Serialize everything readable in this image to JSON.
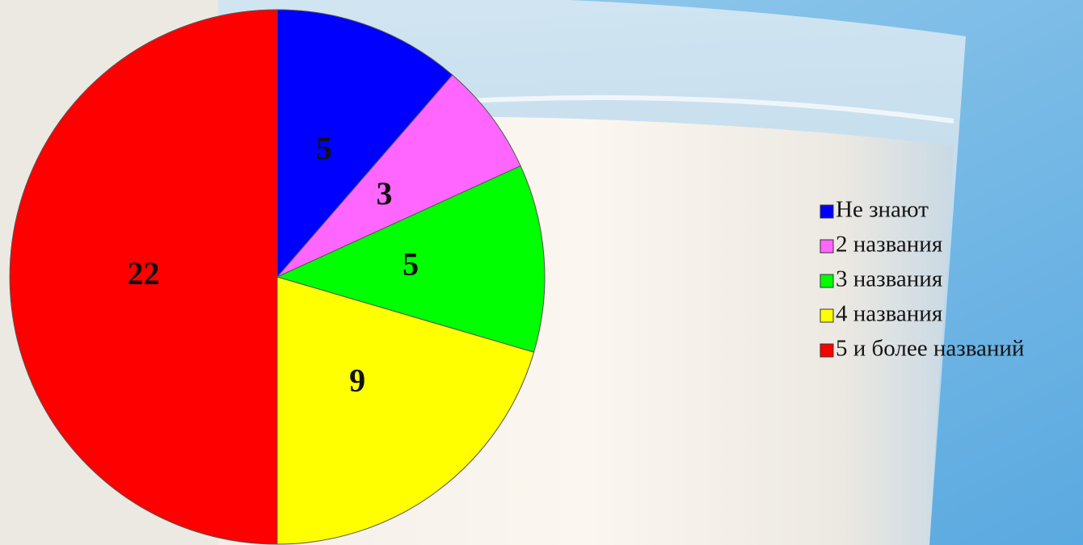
{
  "chart_data": {
    "type": "pie",
    "categories": [
      "Не знают",
      "2 названия",
      "3 названия",
      "4 названия",
      "5 и более названий"
    ],
    "values": [
      5,
      3,
      5,
      9,
      22
    ],
    "colors": [
      "#0000ff",
      "#ff66ff",
      "#00ff00",
      "#ffff00",
      "#ff0000"
    ],
    "legend": "right"
  }
}
